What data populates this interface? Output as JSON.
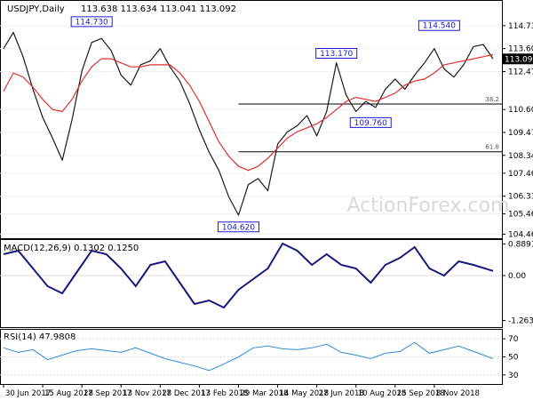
{
  "chart_data": [
    {
      "type": "candlestick",
      "title": "USDJPY,Daily",
      "ohlc": "113.638 113.634 113.041 113.092",
      "last_price": 113.092,
      "ylim": [
        104.26,
        115.95
      ],
      "y_ticks": [
        {
          "label": "114.730",
          "value": 114.73
        },
        {
          "label": "113.600",
          "value": 113.6
        },
        {
          "label": "112.470",
          "value": 112.47
        },
        {
          "label": "110.600",
          "value": 110.6
        },
        {
          "label": "109.470",
          "value": 109.47
        },
        {
          "label": "108.340",
          "value": 108.34
        },
        {
          "label": "107.460",
          "value": 107.46
        },
        {
          "label": "106.330",
          "value": 106.33
        },
        {
          "label": "105.460",
          "value": 105.46
        },
        {
          "label": "104.460",
          "value": 104.46
        }
      ],
      "price_labels": [
        {
          "label": "114.730",
          "x": 18,
          "value": 114.73
        },
        {
          "label": "104.620",
          "x": 48,
          "value": 104.62
        },
        {
          "label": "113.170",
          "x": 68,
          "value": 113.17
        },
        {
          "label": "109.760",
          "x": 75,
          "value": 109.76
        },
        {
          "label": "114.540",
          "x": 89,
          "value": 114.54
        }
      ],
      "fib_levels": [
        {
          "label": "38.2",
          "value": 110.87,
          "x_start": 48
        },
        {
          "label": "61.8",
          "value": 108.52,
          "x_start": 48
        }
      ],
      "moving_average": [
        [
          0,
          111.5
        ],
        [
          2,
          112.4
        ],
        [
          4,
          112.2
        ],
        [
          6,
          111.7
        ],
        [
          8,
          111.1
        ],
        [
          10,
          110.6
        ],
        [
          12,
          110.5
        ],
        [
          14,
          111.1
        ],
        [
          16,
          112.0
        ],
        [
          18,
          112.7
        ],
        [
          20,
          113.1
        ],
        [
          22,
          113.1
        ],
        [
          24,
          112.9
        ],
        [
          26,
          112.7
        ],
        [
          28,
          112.7
        ],
        [
          30,
          112.8
        ],
        [
          32,
          112.8
        ],
        [
          34,
          112.8
        ],
        [
          36,
          112.4
        ],
        [
          38,
          111.8
        ],
        [
          40,
          111.0
        ],
        [
          42,
          110.0
        ],
        [
          44,
          109.0
        ],
        [
          46,
          108.3
        ],
        [
          48,
          107.8
        ],
        [
          50,
          107.6
        ],
        [
          52,
          107.8
        ],
        [
          54,
          108.2
        ],
        [
          56,
          108.7
        ],
        [
          58,
          109.2
        ],
        [
          60,
          109.5
        ],
        [
          62,
          109.7
        ],
        [
          64,
          109.9
        ],
        [
          66,
          110.2
        ],
        [
          68,
          110.6
        ],
        [
          70,
          111.0
        ],
        [
          72,
          111.2
        ],
        [
          74,
          111.1
        ],
        [
          76,
          111.0
        ],
        [
          78,
          111.2
        ],
        [
          80,
          111.4
        ],
        [
          82,
          111.8
        ],
        [
          84,
          112.0
        ],
        [
          86,
          112.1
        ],
        [
          88,
          112.4
        ],
        [
          90,
          112.8
        ],
        [
          92,
          112.9
        ],
        [
          94,
          113.0
        ],
        [
          96,
          113.1
        ],
        [
          98,
          113.2
        ],
        [
          100,
          113.3
        ]
      ],
      "price_path": [
        [
          0,
          113.6
        ],
        [
          2,
          114.4
        ],
        [
          4,
          113.2
        ],
        [
          6,
          111.6
        ],
        [
          8,
          110.2
        ],
        [
          10,
          109.2
        ],
        [
          12,
          108.1
        ],
        [
          14,
          110.1
        ],
        [
          16,
          112.5
        ],
        [
          18,
          113.9
        ],
        [
          20,
          114.1
        ],
        [
          22,
          113.5
        ],
        [
          24,
          112.3
        ],
        [
          26,
          111.8
        ],
        [
          28,
          112.8
        ],
        [
          30,
          113.0
        ],
        [
          32,
          113.6
        ],
        [
          34,
          112.7
        ],
        [
          36,
          112.0
        ],
        [
          38,
          110.9
        ],
        [
          40,
          109.6
        ],
        [
          42,
          108.5
        ],
        [
          44,
          107.6
        ],
        [
          46,
          106.3
        ],
        [
          48,
          105.4
        ],
        [
          50,
          106.9
        ],
        [
          52,
          107.2
        ],
        [
          54,
          106.6
        ],
        [
          56,
          108.9
        ],
        [
          58,
          109.5
        ],
        [
          60,
          109.8
        ],
        [
          62,
          110.3
        ],
        [
          64,
          109.3
        ],
        [
          66,
          110.5
        ],
        [
          68,
          112.9
        ],
        [
          70,
          111.3
        ],
        [
          72,
          110.5
        ],
        [
          74,
          111.0
        ],
        [
          76,
          110.7
        ],
        [
          78,
          111.6
        ],
        [
          80,
          112.1
        ],
        [
          82,
          111.6
        ],
        [
          84,
          112.3
        ],
        [
          86,
          112.9
        ],
        [
          88,
          113.6
        ],
        [
          90,
          112.6
        ],
        [
          92,
          112.2
        ],
        [
          94,
          112.8
        ],
        [
          96,
          113.7
        ],
        [
          98,
          113.8
        ],
        [
          100,
          113.1
        ]
      ],
      "x_ticks": [
        {
          "label": "30 Jun 2017",
          "x": 0
        },
        {
          "label": "15 Aug 2017",
          "x": 8
        },
        {
          "label": "28 Sep 2017",
          "x": 16
        },
        {
          "label": "13 Nov 2017",
          "x": 24
        },
        {
          "label": "28 Dec 2017",
          "x": 32
        },
        {
          "label": "13 Feb 2018",
          "x": 40
        },
        {
          "label": "29 Mar 2018",
          "x": 48
        },
        {
          "label": "14 May 2018",
          "x": 56
        },
        {
          "label": "27 Jun 2018",
          "x": 64
        },
        {
          "label": "10 Aug 2018",
          "x": 72
        },
        {
          "label": "25 Sep 2018",
          "x": 80
        },
        {
          "label": "8 Nov 2018",
          "x": 88
        }
      ]
    },
    {
      "type": "line",
      "title": "MACD(12,26,9) 0.1302 0.1250",
      "ylim": [
        -1.45,
        1.0
      ],
      "y_ticks": [
        {
          "label": "0.8891",
          "value": 0.8891
        },
        {
          "label": "0.00",
          "value": 0
        },
        {
          "label": "-1.2634",
          "value": -1.2634
        }
      ],
      "series": [
        {
          "values": [
            [
              0,
              0.6
            ],
            [
              3,
              0.7
            ],
            [
              6,
              0.2
            ],
            [
              9,
              -0.3
            ],
            [
              12,
              -0.5
            ],
            [
              15,
              0.1
            ],
            [
              18,
              0.7
            ],
            [
              21,
              0.6
            ],
            [
              24,
              0.2
            ],
            [
              27,
              -0.3
            ],
            [
              30,
              0.3
            ],
            [
              33,
              0.4
            ],
            [
              36,
              -0.2
            ],
            [
              39,
              -0.8
            ],
            [
              42,
              -0.7
            ],
            [
              45,
              -0.9
            ],
            [
              48,
              -0.4
            ],
            [
              51,
              -0.1
            ],
            [
              54,
              0.2
            ],
            [
              57,
              0.9
            ],
            [
              60,
              0.7
            ],
            [
              63,
              0.3
            ],
            [
              66,
              0.6
            ],
            [
              69,
              0.3
            ],
            [
              72,
              0.2
            ],
            [
              75,
              -0.2
            ],
            [
              78,
              0.3
            ],
            [
              81,
              0.5
            ],
            [
              84,
              0.8
            ],
            [
              87,
              0.2
            ],
            [
              90,
              0.0
            ],
            [
              93,
              0.4
            ],
            [
              96,
              0.3
            ],
            [
              100,
              0.13
            ]
          ]
        }
      ]
    },
    {
      "type": "line",
      "title": "RSI(14) 47.9808",
      "ylim": [
        20,
        80
      ],
      "y_ticks": [
        {
          "label": "70",
          "value": 70
        },
        {
          "label": "50",
          "value": 50
        },
        {
          "label": "30",
          "value": 30
        }
      ],
      "series": [
        {
          "values": [
            [
              0,
              60
            ],
            [
              3,
              55
            ],
            [
              6,
              58
            ],
            [
              9,
              47
            ],
            [
              12,
              52
            ],
            [
              15,
              57
            ],
            [
              18,
              59
            ],
            [
              21,
              57
            ],
            [
              24,
              55
            ],
            [
              27,
              60
            ],
            [
              30,
              54
            ],
            [
              33,
              48
            ],
            [
              36,
              44
            ],
            [
              39,
              40
            ],
            [
              42,
              35
            ],
            [
              45,
              42
            ],
            [
              48,
              50
            ],
            [
              51,
              60
            ],
            [
              54,
              62
            ],
            [
              57,
              59
            ],
            [
              60,
              58
            ],
            [
              63,
              60
            ],
            [
              66,
              64
            ],
            [
              69,
              55
            ],
            [
              72,
              52
            ],
            [
              75,
              48
            ],
            [
              78,
              54
            ],
            [
              81,
              56
            ],
            [
              84,
              66
            ],
            [
              87,
              54
            ],
            [
              90,
              58
            ],
            [
              93,
              62
            ],
            [
              96,
              56
            ],
            [
              100,
              48
            ]
          ]
        }
      ]
    }
  ],
  "watermark": "ActionForex.com"
}
